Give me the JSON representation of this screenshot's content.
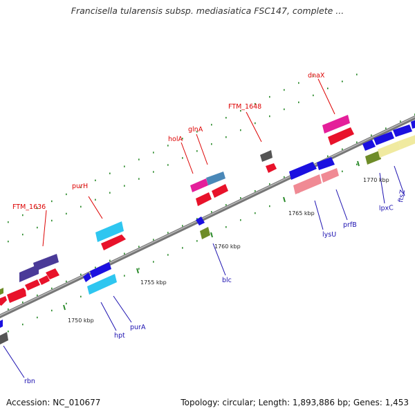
{
  "title": "Francisella tularensis subsp. mediasiatica FSC147, complete ...",
  "footer": {
    "accession": "Accession: NC_010677",
    "summary": "Topology: circular; Length: 1,893,886 bp; Genes: 1,453"
  },
  "colors": {
    "red": "#e8122a",
    "blue": "#1b10e0",
    "cyan": "#2ec6f0",
    "magenta": "#e41f9a",
    "purple": "#4a3a98",
    "salmon": "#f08a94",
    "steelblue": "#4a88b8",
    "gray": "#555555",
    "olive": "#6e8c28",
    "khaki": "#f0eaa0",
    "label_top": "#dd0000",
    "label_bottom": "#1b10b0",
    "tick": "#2a8a2a",
    "backbone": "#8a8a8a"
  },
  "ruler": [
    {
      "label": "1750 kbp",
      "kbp": 1750
    },
    {
      "label": "1755 kbp",
      "kbp": 1755
    },
    {
      "label": "1760 kbp",
      "kbp": 1760
    },
    {
      "label": "1765 kbp",
      "kbp": 1765
    },
    {
      "label": "1770 kbp",
      "kbp": 1770
    }
  ],
  "gene_labels_top": [
    "FTM_1636",
    "purH",
    "holA",
    "glnA",
    "FTM_1648",
    "dnaX"
  ],
  "gene_labels_bottom": [
    "rbn",
    "hpt",
    "purA",
    "blc",
    "lysU",
    "prfB",
    "lpxC",
    "ftsZ"
  ]
}
